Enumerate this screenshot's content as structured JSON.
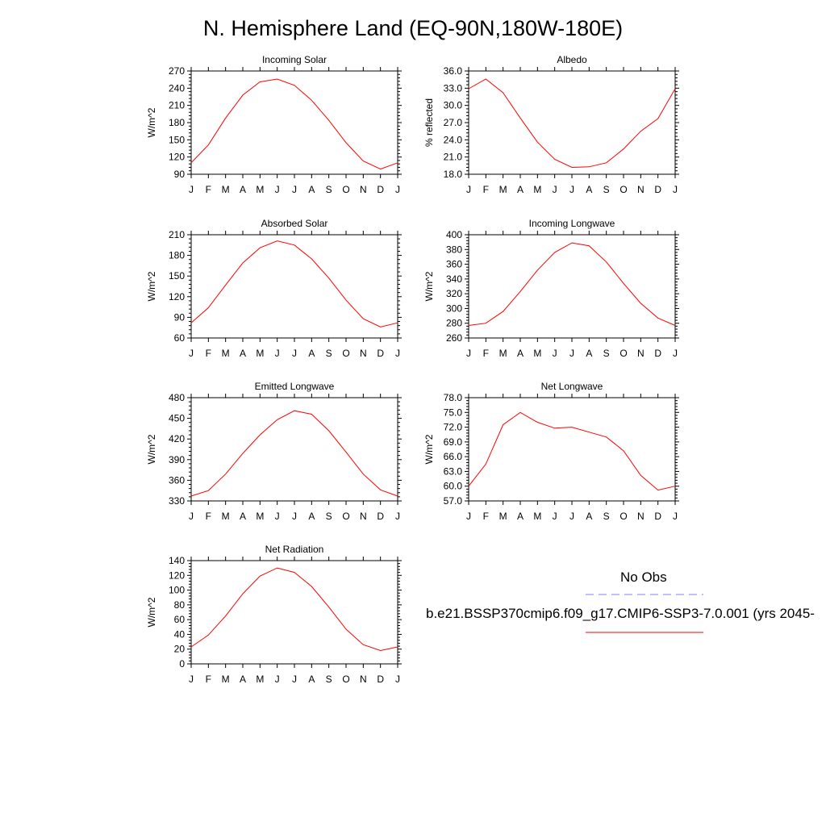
{
  "page": {
    "title": "N. Hemisphere Land (EQ-90N,180W-180E)"
  },
  "legend": {
    "obs_label": "No Obs",
    "obs_color": "#7b7bff",
    "model_label": "b.e21.BSSP370cmip6.f09_g17.CMIP6-SSP3-7.0.001 (yrs 2045-",
    "model_color": "#ff0000"
  },
  "chart_data": [
    {
      "type": "line",
      "title": "Incoming Solar",
      "ylabel": "W/m^2",
      "x": [
        "J",
        "F",
        "M",
        "A",
        "M",
        "J",
        "J",
        "A",
        "S",
        "O",
        "N",
        "D",
        "J"
      ],
      "ylim": [
        90,
        270
      ],
      "yticks": [
        "90",
        "120",
        "150",
        "180",
        "210",
        "240",
        "270"
      ],
      "series": [
        {
          "color": "#ff0000",
          "values": [
            110,
            141,
            188,
            228,
            251,
            256,
            245,
            219,
            184,
            145,
            113,
            99,
            110
          ]
        }
      ]
    },
    {
      "type": "line",
      "title": "Albedo",
      "ylabel": "% reflected",
      "x": [
        "J",
        "F",
        "M",
        "A",
        "M",
        "J",
        "J",
        "A",
        "S",
        "O",
        "N",
        "D",
        "J"
      ],
      "ylim": [
        18.0,
        36.0
      ],
      "yticks": [
        "18.0",
        "21.0",
        "24.0",
        "27.0",
        "30.0",
        "33.0",
        "36.0"
      ],
      "series": [
        {
          "color": "#ff0000",
          "values": [
            32.9,
            34.6,
            32.2,
            27.8,
            23.6,
            20.6,
            19.2,
            19.3,
            20.0,
            22.4,
            25.5,
            27.7,
            32.9
          ]
        }
      ]
    },
    {
      "type": "line",
      "title": "Absorbed Solar",
      "ylabel": "W/m^2",
      "x": [
        "J",
        "F",
        "M",
        "A",
        "M",
        "J",
        "J",
        "A",
        "S",
        "O",
        "N",
        "D",
        "J"
      ],
      "ylim": [
        60,
        210
      ],
      "yticks": [
        "60",
        "90",
        "120",
        "150",
        "180",
        "210"
      ],
      "series": [
        {
          "color": "#ff0000",
          "values": [
            82,
            104,
            137,
            169,
            191,
            201,
            195,
            175,
            147,
            115,
            88,
            76,
            82
          ]
        }
      ]
    },
    {
      "type": "line",
      "title": "Incoming Longwave",
      "ylabel": "W/m^2",
      "x": [
        "J",
        "F",
        "M",
        "A",
        "M",
        "J",
        "J",
        "A",
        "S",
        "O",
        "N",
        "D",
        "J"
      ],
      "ylim": [
        260,
        400
      ],
      "yticks": [
        "260",
        "280",
        "300",
        "320",
        "340",
        "360",
        "380",
        "400"
      ],
      "series": [
        {
          "color": "#ff0000",
          "values": [
            277,
            280,
            296,
            323,
            352,
            376,
            389,
            385,
            363,
            334,
            307,
            287,
            277
          ]
        }
      ]
    },
    {
      "type": "line",
      "title": "Emitted Longwave",
      "ylabel": "W/m^2",
      "x": [
        "J",
        "F",
        "M",
        "A",
        "M",
        "J",
        "J",
        "A",
        "S",
        "O",
        "N",
        "D",
        "J"
      ],
      "ylim": [
        330,
        480
      ],
      "yticks": [
        "330",
        "360",
        "390",
        "420",
        "450",
        "480"
      ],
      "series": [
        {
          "color": "#ff0000",
          "values": [
            337,
            345,
            369,
            399,
            426,
            448,
            461,
            456,
            432,
            401,
            369,
            346,
            337
          ]
        }
      ]
    },
    {
      "type": "line",
      "title": "Net Longwave",
      "ylabel": "W/m^2",
      "x": [
        "J",
        "F",
        "M",
        "A",
        "M",
        "J",
        "J",
        "A",
        "S",
        "O",
        "N",
        "D",
        "J"
      ],
      "ylim": [
        57.0,
        78.0
      ],
      "yticks": [
        "57.0",
        "60.0",
        "63.0",
        "66.0",
        "69.0",
        "72.0",
        "75.0",
        "78.0"
      ],
      "series": [
        {
          "color": "#ff0000",
          "values": [
            60.0,
            64.5,
            72.5,
            75.0,
            73.0,
            71.8,
            72.0,
            71.0,
            70.0,
            67.2,
            62.2,
            59.2,
            60.0
          ]
        }
      ]
    },
    {
      "type": "line",
      "title": "Net Radiation",
      "ylabel": "W/m^2",
      "x": [
        "J",
        "F",
        "M",
        "A",
        "M",
        "J",
        "J",
        "A",
        "S",
        "O",
        "N",
        "D",
        "J"
      ],
      "ylim": [
        0,
        140
      ],
      "yticks": [
        "0",
        "20",
        "40",
        "60",
        "80",
        "100",
        "120",
        "140"
      ],
      "series": [
        {
          "color": "#ff0000",
          "values": [
            23,
            39,
            65,
            95,
            119,
            130,
            124,
            105,
            77,
            47,
            26,
            18,
            23
          ]
        }
      ]
    }
  ]
}
